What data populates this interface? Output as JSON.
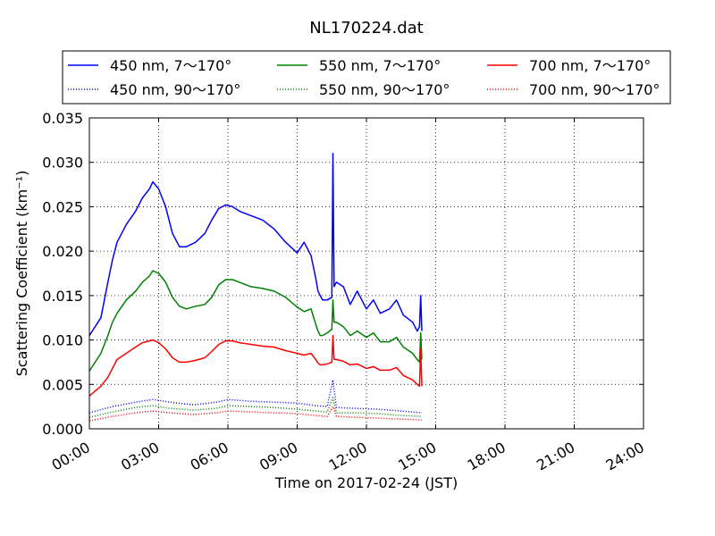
{
  "chart_data": {
    "type": "line",
    "title": "NL170224.dat",
    "xlabel": "Time on 2017-02-24 (JST)",
    "ylabel": "Scattering Coefficient (km⁻¹)",
    "xlim": [
      0,
      24
    ],
    "ylim": [
      0,
      0.035
    ],
    "grid": true,
    "legend_position": "top",
    "x_ticks": [
      0,
      3,
      6,
      9,
      12,
      15,
      18,
      21,
      24
    ],
    "x_tick_labels": [
      "00:00",
      "03:00",
      "06:00",
      "09:00",
      "12:00",
      "15:00",
      "18:00",
      "21:00",
      "24:00"
    ],
    "y_ticks": [
      0,
      0.005,
      0.01,
      0.015,
      0.02,
      0.025,
      0.03,
      0.035
    ],
    "y_tick_labels": [
      "0.000",
      "0.005",
      "0.010",
      "0.015",
      "0.020",
      "0.025",
      "0.030",
      "0.035"
    ],
    "series": [
      {
        "name": "450 nm, 7～170°",
        "color": "#0000ff",
        "style": "solid",
        "x": [
          0,
          0.5,
          0.8,
          1.0,
          1.2,
          1.6,
          2.0,
          2.3,
          2.6,
          2.75,
          3.0,
          3.3,
          3.6,
          3.9,
          4.2,
          4.6,
          5.0,
          5.3,
          5.6,
          5.9,
          6.2,
          6.5,
          7.0,
          7.5,
          8.0,
          8.5,
          9.0,
          9.3,
          9.6,
          9.8,
          9.9,
          10.0,
          10.1,
          10.3,
          10.5,
          10.55,
          10.6,
          10.7,
          11.0,
          11.3,
          11.6,
          12.0,
          12.3,
          12.6,
          13.0,
          13.3,
          13.6,
          14.0,
          14.2,
          14.3,
          14.35,
          14.4
        ],
        "y": [
          0.0105,
          0.0125,
          0.0165,
          0.019,
          0.021,
          0.023,
          0.0245,
          0.026,
          0.027,
          0.0278,
          0.027,
          0.025,
          0.022,
          0.0205,
          0.0205,
          0.021,
          0.022,
          0.0235,
          0.0248,
          0.0252,
          0.025,
          0.0245,
          0.024,
          0.0235,
          0.0225,
          0.021,
          0.0198,
          0.021,
          0.0195,
          0.017,
          0.0155,
          0.015,
          0.0145,
          0.0145,
          0.0148,
          0.031,
          0.016,
          0.0165,
          0.016,
          0.014,
          0.0155,
          0.0135,
          0.0145,
          0.013,
          0.0135,
          0.0145,
          0.0128,
          0.012,
          0.011,
          0.0115,
          0.015,
          0.011
        ]
      },
      {
        "name": "550 nm, 7～170°",
        "color": "#008000",
        "style": "solid",
        "x": [
          0,
          0.5,
          0.8,
          1.0,
          1.2,
          1.6,
          2.0,
          2.3,
          2.6,
          2.75,
          3.0,
          3.3,
          3.6,
          3.9,
          4.2,
          4.6,
          5.0,
          5.3,
          5.6,
          5.9,
          6.2,
          6.5,
          7.0,
          7.5,
          8.0,
          8.5,
          9.0,
          9.3,
          9.6,
          9.8,
          9.9,
          10.0,
          10.1,
          10.3,
          10.5,
          10.55,
          10.6,
          10.7,
          11.0,
          11.3,
          11.6,
          12.0,
          12.3,
          12.6,
          13.0,
          13.3,
          13.6,
          14.0,
          14.2,
          14.3,
          14.35,
          14.4
        ],
        "y": [
          0.0065,
          0.0085,
          0.0105,
          0.012,
          0.013,
          0.0145,
          0.0155,
          0.0165,
          0.0172,
          0.0178,
          0.0175,
          0.0165,
          0.0148,
          0.0138,
          0.0135,
          0.0138,
          0.014,
          0.0148,
          0.0162,
          0.0168,
          0.0168,
          0.0165,
          0.016,
          0.0158,
          0.0155,
          0.0148,
          0.0137,
          0.0132,
          0.0135,
          0.0118,
          0.011,
          0.0105,
          0.0105,
          0.0108,
          0.0112,
          0.0145,
          0.012,
          0.012,
          0.0115,
          0.0105,
          0.011,
          0.0103,
          0.0108,
          0.0098,
          0.0098,
          0.0103,
          0.0092,
          0.0085,
          0.0078,
          0.0075,
          0.0108,
          0.0078
        ]
      },
      {
        "name": "700 nm, 7～170°",
        "color": "#ff0000",
        "style": "solid",
        "x": [
          0,
          0.5,
          0.8,
          1.0,
          1.2,
          1.6,
          2.0,
          2.3,
          2.6,
          2.75,
          3.0,
          3.3,
          3.6,
          3.9,
          4.2,
          4.6,
          5.0,
          5.3,
          5.6,
          5.9,
          6.2,
          6.5,
          7.0,
          7.5,
          8.0,
          8.5,
          9.0,
          9.3,
          9.6,
          9.8,
          9.9,
          10.0,
          10.1,
          10.3,
          10.5,
          10.55,
          10.6,
          10.7,
          11.0,
          11.3,
          11.6,
          12.0,
          12.3,
          12.6,
          13.0,
          13.3,
          13.6,
          14.0,
          14.2,
          14.3,
          14.35,
          14.4
        ],
        "y": [
          0.0037,
          0.0048,
          0.0058,
          0.0068,
          0.0078,
          0.0085,
          0.0092,
          0.0097,
          0.0099,
          0.01,
          0.0097,
          0.009,
          0.008,
          0.0075,
          0.0075,
          0.0077,
          0.008,
          0.0087,
          0.0095,
          0.0099,
          0.0099,
          0.0097,
          0.0095,
          0.0093,
          0.0092,
          0.0088,
          0.0085,
          0.0083,
          0.0085,
          0.0078,
          0.0074,
          0.0072,
          0.0072,
          0.0073,
          0.0075,
          0.0105,
          0.0078,
          0.0078,
          0.0076,
          0.0072,
          0.0073,
          0.0068,
          0.007,
          0.0066,
          0.0066,
          0.0069,
          0.006,
          0.0055,
          0.005,
          0.0048,
          0.009,
          0.0048
        ]
      },
      {
        "name": "450 nm, 90～170°",
        "color": "#0000ff",
        "style": "dotted",
        "x": [
          0,
          1.0,
          2.0,
          2.75,
          3.5,
          4.5,
          5.5,
          6.0,
          7.0,
          8.0,
          9.0,
          9.8,
          10.3,
          10.55,
          10.7,
          11.5,
          12.5,
          13.5,
          14.4
        ],
        "y": [
          0.0018,
          0.0025,
          0.003,
          0.0033,
          0.003,
          0.0027,
          0.003,
          0.0033,
          0.0031,
          0.003,
          0.0029,
          0.0026,
          0.0025,
          0.0055,
          0.0024,
          0.0023,
          0.0022,
          0.002,
          0.0018
        ]
      },
      {
        "name": "550 nm, 90～170°",
        "color": "#008000",
        "style": "dotted",
        "x": [
          0,
          1.0,
          2.0,
          2.75,
          3.5,
          4.5,
          5.5,
          6.0,
          7.0,
          8.0,
          9.0,
          9.8,
          10.3,
          10.55,
          10.7,
          11.5,
          12.5,
          13.5,
          14.4
        ],
        "y": [
          0.0013,
          0.0019,
          0.0024,
          0.0026,
          0.0023,
          0.0021,
          0.0023,
          0.0026,
          0.0025,
          0.0024,
          0.0022,
          0.002,
          0.0019,
          0.0035,
          0.0018,
          0.0018,
          0.0017,
          0.0015,
          0.0014
        ]
      },
      {
        "name": "700 nm, 90～170°",
        "color": "#ff0000",
        "style": "dotted",
        "x": [
          0,
          1.0,
          2.0,
          2.75,
          3.5,
          4.5,
          5.5,
          6.0,
          7.0,
          8.0,
          9.0,
          9.8,
          10.3,
          10.55,
          10.7,
          11.5,
          12.5,
          13.5,
          14.4
        ],
        "y": [
          0.0009,
          0.0014,
          0.0018,
          0.002,
          0.0018,
          0.0016,
          0.0018,
          0.002,
          0.0019,
          0.0018,
          0.0017,
          0.0015,
          0.0014,
          0.0025,
          0.0014,
          0.0013,
          0.0012,
          0.0011,
          0.001
        ]
      }
    ]
  }
}
